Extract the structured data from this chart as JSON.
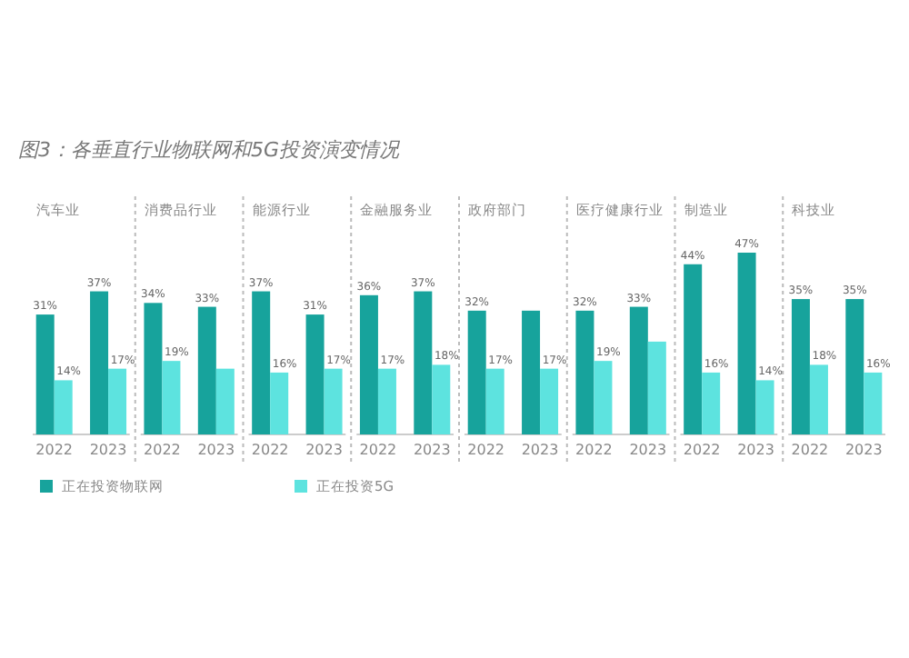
{
  "chart_data": {
    "type": "bar",
    "title": "图3：各垂直行业物联网和5G投资演变情况",
    "categories": [
      "2022",
      "2023",
      "2022",
      "2023",
      "2022",
      "2023",
      "2022",
      "2023",
      "2022",
      "2023",
      "2022",
      "2023",
      "2022",
      "2023",
      "2022",
      "2023"
    ],
    "annotations": [
      "汽车业",
      "消费品行业",
      "能源行业",
      "金融服务业",
      "政府部门",
      "医疗健康行业",
      "制造业",
      "科技业"
    ],
    "series": [
      {
        "name": "正在投资物联网",
        "color": "#17a39c",
        "values": [
          31,
          37,
          34,
          33,
          37,
          31,
          36,
          37,
          32,
          32,
          32,
          33,
          44,
          47,
          35,
          35
        ],
        "value_labels": [
          "31%",
          "37%",
          "34%",
          "33%",
          "37%",
          "31%",
          "36%",
          "37%",
          "32%",
          null,
          "32%",
          "33%",
          "44%",
          "47%",
          "35%",
          "35%"
        ]
      },
      {
        "name": "正在投资5G",
        "color": "#5de3df",
        "values": [
          14,
          17,
          19,
          17,
          16,
          17,
          17,
          18,
          17,
          17,
          19,
          24,
          16,
          14,
          18,
          16
        ],
        "value_labels": [
          "14%",
          "17%",
          "19%",
          null,
          "16%",
          "17%",
          "17%",
          "18%",
          "17%",
          "17%",
          "19%",
          null,
          "16%",
          "14%",
          "18%",
          "16%"
        ]
      }
    ],
    "legend": "bottom left"
  }
}
